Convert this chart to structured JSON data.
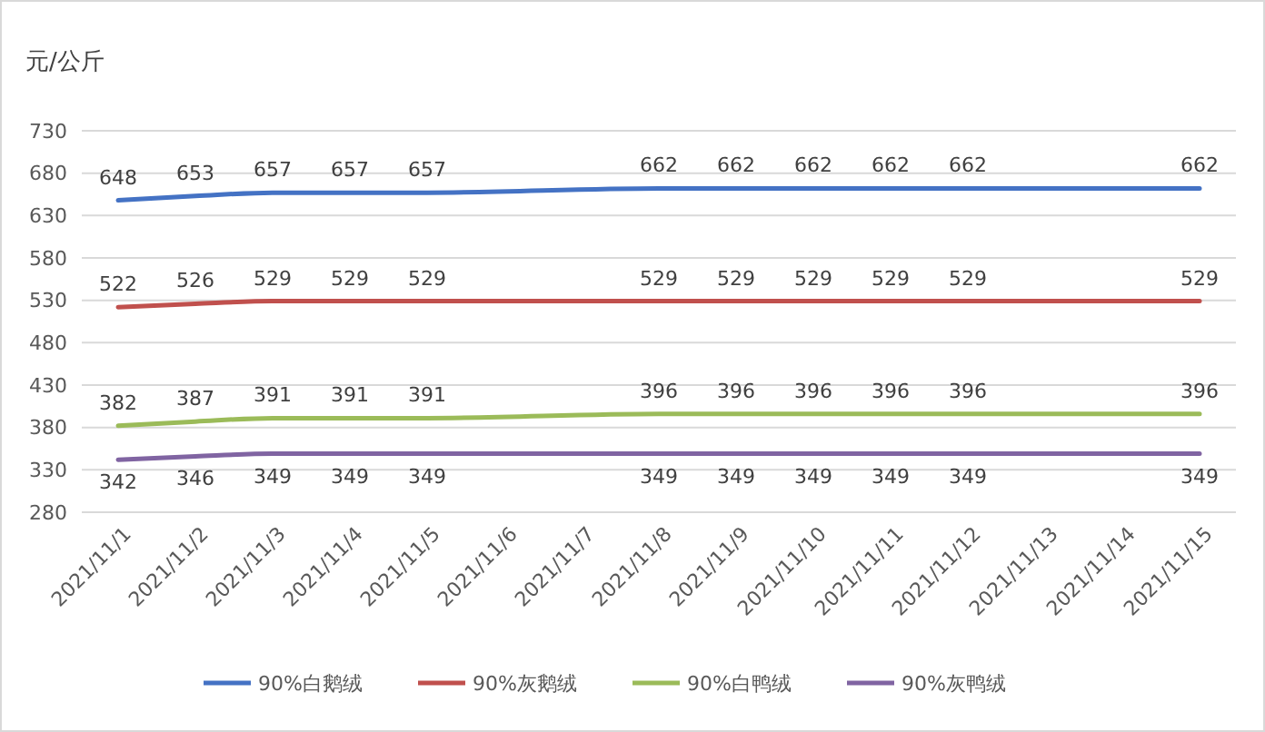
{
  "chart_data": {
    "type": "line",
    "ylabel": "元/公斤",
    "categories": [
      "2021/11/1",
      "2021/11/2",
      "2021/11/3",
      "2021/11/4",
      "2021/11/5",
      "2021/11/6",
      "2021/11/7",
      "2021/11/8",
      "2021/11/9",
      "2021/11/10",
      "2021/11/11",
      "2021/11/12",
      "2021/11/13",
      "2021/11/14",
      "2021/11/15"
    ],
    "series": [
      {
        "name": "90%白鹅绒",
        "color": "#4472c4",
        "values": [
          648,
          653,
          657,
          657,
          657,
          null,
          null,
          662,
          662,
          662,
          662,
          662,
          null,
          null,
          662
        ]
      },
      {
        "name": "90%灰鹅绒",
        "color": "#c0504d",
        "values": [
          522,
          526,
          529,
          529,
          529,
          null,
          null,
          529,
          529,
          529,
          529,
          529,
          null,
          null,
          529
        ]
      },
      {
        "name": "90%白鸭绒",
        "color": "#9bbb59",
        "values": [
          382,
          387,
          391,
          391,
          391,
          null,
          null,
          396,
          396,
          396,
          396,
          396,
          null,
          null,
          396
        ]
      },
      {
        "name": "90%灰鸭绒",
        "color": "#8064a2",
        "values": [
          342,
          346,
          349,
          349,
          349,
          null,
          null,
          349,
          349,
          349,
          349,
          349,
          null,
          null,
          349
        ]
      }
    ],
    "ylim": [
      280,
      730
    ],
    "yticks": [
      280,
      330,
      380,
      430,
      480,
      530,
      580,
      630,
      680,
      730
    ],
    "grid": "y",
    "legend": "bottom",
    "data_labels": true,
    "marker": "none",
    "line_style": "solid"
  }
}
